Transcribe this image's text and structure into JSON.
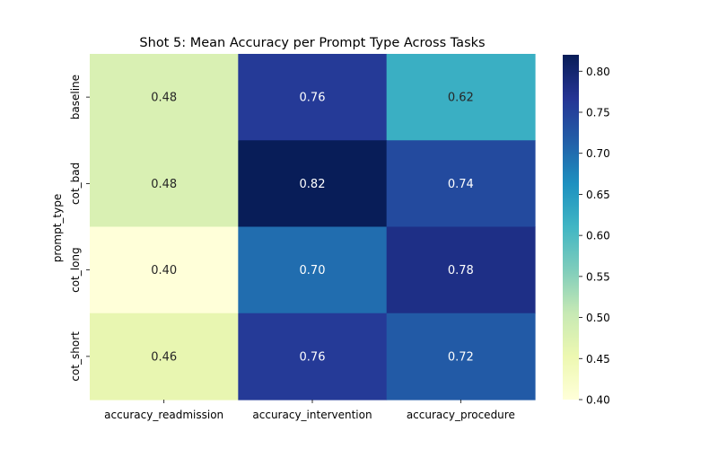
{
  "chart_data": {
    "type": "heatmap",
    "title": "Shot 5: Mean Accuracy per Prompt Type Across Tasks",
    "xlabel": "",
    "ylabel": "prompt_type",
    "columns": [
      "accuracy_readmission",
      "accuracy_intervention",
      "accuracy_procedure"
    ],
    "rows": [
      "baseline",
      "cot_bad",
      "cot_long",
      "cot_short"
    ],
    "values": [
      [
        0.48,
        0.76,
        0.62
      ],
      [
        0.48,
        0.82,
        0.74
      ],
      [
        0.4,
        0.7,
        0.78
      ],
      [
        0.46,
        0.76,
        0.72
      ]
    ],
    "value_format": "0.00",
    "colormap": "YlGnBu",
    "color_range": [
      0.4,
      0.82
    ],
    "colorbar": {
      "ticks": [
        0.4,
        0.45,
        0.5,
        0.55,
        0.6,
        0.65,
        0.7,
        0.75,
        0.8
      ],
      "tick_labels": [
        "0.40",
        "0.45",
        "0.50",
        "0.55",
        "0.60",
        "0.65",
        "0.70",
        "0.75",
        "0.80"
      ]
    },
    "grid": false,
    "legend": "colorbar-right"
  }
}
